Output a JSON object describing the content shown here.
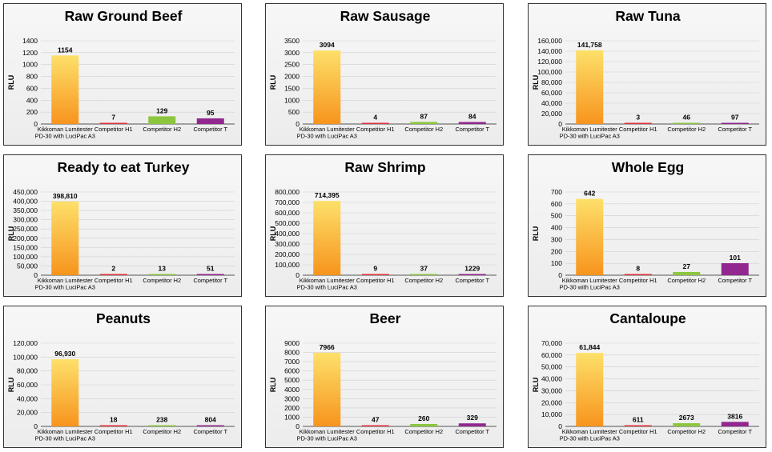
{
  "colors": {
    "kikkoman_top": "#fde06a",
    "kikkoman_bottom": "#f7941d",
    "h1": "#e0343a",
    "h2": "#8cc63f",
    "t": "#92278f",
    "grid": "#cfcfcf",
    "axis": "#555555"
  },
  "chart_data": [
    {
      "type": "bar",
      "title": "Raw Ground Beef",
      "ylabel": "RLU",
      "ylim": [
        0,
        1400
      ],
      "yticks": [
        "0",
        "200",
        "400",
        "600",
        "800",
        "1000",
        "1200",
        "1400"
      ],
      "categories": [
        [
          "Kikkoman Lumitester",
          "PD-30 with LuciPac A3"
        ],
        [
          "Competitor H1"
        ],
        [
          "Competitor H2"
        ],
        [
          "Competitor T"
        ]
      ],
      "values": [
        1154,
        7,
        129,
        95
      ],
      "value_labels": [
        "1154",
        "7",
        "129",
        "95"
      ]
    },
    {
      "type": "bar",
      "title": "Raw Sausage",
      "ylabel": "RLU",
      "ylim": [
        0,
        3500
      ],
      "yticks": [
        "0",
        "500",
        "1000",
        "1500",
        "2000",
        "2500",
        "3000",
        "3500"
      ],
      "categories": [
        [
          "Kikkoman Lumitester",
          "PD-30 with LuciPac A3"
        ],
        [
          "Competitor H1"
        ],
        [
          "Competitor H2"
        ],
        [
          "Competitor T"
        ]
      ],
      "values": [
        3094,
        4,
        87,
        84
      ],
      "value_labels": [
        "3094",
        "4",
        "87",
        "84"
      ]
    },
    {
      "type": "bar",
      "title": "Raw Tuna",
      "ylabel": "RLU",
      "ylim": [
        0,
        160000
      ],
      "yticks": [
        "0",
        "20,000",
        "40,000",
        "60,000",
        "80,000",
        "100,000",
        "120,000",
        "140,000",
        "160,000"
      ],
      "categories": [
        [
          "Kikkoman Lumitester",
          "PD-30 with LuciPac A3"
        ],
        [
          "Competitor H1"
        ],
        [
          "Competitor H2"
        ],
        [
          "Competitor T"
        ]
      ],
      "values": [
        141758,
        3,
        46,
        97
      ],
      "value_labels": [
        "141,758",
        "3",
        "46",
        "97"
      ]
    },
    {
      "type": "bar",
      "title": "Ready to eat Turkey",
      "ylabel": "RLU",
      "ylim": [
        0,
        450000
      ],
      "yticks": [
        "0",
        "50,000",
        "100,000",
        "150,000",
        "200,000",
        "250,000",
        "300,000",
        "350,000",
        "400,000",
        "450,000"
      ],
      "categories": [
        [
          "Kikkoman Lumitester",
          "PD-30 with LuciPac A3"
        ],
        [
          "Competitor H1"
        ],
        [
          "Competitor H2"
        ],
        [
          "Competitor T"
        ]
      ],
      "values": [
        398810,
        2,
        13,
        51
      ],
      "value_labels": [
        "398,810",
        "2",
        "13",
        "51"
      ]
    },
    {
      "type": "bar",
      "title": "Raw Shrimp",
      "ylabel": "RLU",
      "ylim": [
        0,
        800000
      ],
      "yticks": [
        "0",
        "100,000",
        "200,000",
        "300,000",
        "400,000",
        "500,000",
        "600,000",
        "700,000",
        "800,000"
      ],
      "categories": [
        [
          "Kikkoman Lumitester",
          "PD-30 with LuciPac A3"
        ],
        [
          "Competitor H1"
        ],
        [
          "Competitor H2"
        ],
        [
          "Competitor T"
        ]
      ],
      "values": [
        714395,
        9,
        37,
        1229
      ],
      "value_labels": [
        "714,395",
        "9",
        "37",
        "1229"
      ]
    },
    {
      "type": "bar",
      "title": "Whole Egg",
      "ylabel": "RLU",
      "ylim": [
        0,
        700
      ],
      "yticks": [
        "0",
        "100",
        "200",
        "300",
        "400",
        "500",
        "600",
        "700"
      ],
      "categories": [
        [
          "Kikkoman Lumitester",
          "PD-30 with LuciPac A3"
        ],
        [
          "Competitor H1"
        ],
        [
          "Competitor H2"
        ],
        [
          "Competitor T"
        ]
      ],
      "values": [
        642,
        8,
        27,
        101
      ],
      "value_labels": [
        "642",
        "8",
        "27",
        "101"
      ]
    },
    {
      "type": "bar",
      "title": "Peanuts",
      "ylabel": "RLU",
      "ylim": [
        0,
        120000
      ],
      "yticks": [
        "0",
        "20,000",
        "40,000",
        "60,000",
        "80,000",
        "100,000",
        "120,000"
      ],
      "categories": [
        [
          "Kikkoman Lumitester",
          "PD-30 with LuciPac A3"
        ],
        [
          "Competitor H1"
        ],
        [
          "Competitor H2"
        ],
        [
          "Competitor T"
        ]
      ],
      "values": [
        96930,
        18,
        238,
        804
      ],
      "value_labels": [
        "96,930",
        "18",
        "238",
        "804"
      ]
    },
    {
      "type": "bar",
      "title": "Beer",
      "ylabel": "RLU",
      "ylim": [
        0,
        9000
      ],
      "yticks": [
        "0",
        "1000",
        "2000",
        "3000",
        "4000",
        "5000",
        "6000",
        "7000",
        "8000",
        "9000"
      ],
      "categories": [
        [
          "Kikkoman Lumitester",
          "PD-30 with LuciPac A3"
        ],
        [
          "Competitor H1"
        ],
        [
          "Competitor H2"
        ],
        [
          "Competitor T"
        ]
      ],
      "values": [
        7966,
        47,
        260,
        329
      ],
      "value_labels": [
        "7966",
        "47",
        "260",
        "329"
      ]
    },
    {
      "type": "bar",
      "title": "Cantaloupe",
      "ylabel": "RLU",
      "ylim": [
        0,
        70000
      ],
      "yticks": [
        "0",
        "10,000",
        "20,000",
        "30,000",
        "40,000",
        "50,000",
        "60,000",
        "70,000"
      ],
      "categories": [
        [
          "Kikkoman Lumitester",
          "PD-30 with LuciPac A3"
        ],
        [
          "Competitor H1"
        ],
        [
          "Competitor H2"
        ],
        [
          "Competitor T"
        ]
      ],
      "values": [
        61844,
        611,
        2673,
        3816
      ],
      "value_labels": [
        "61,844",
        "611",
        "2673",
        "3816"
      ]
    }
  ]
}
